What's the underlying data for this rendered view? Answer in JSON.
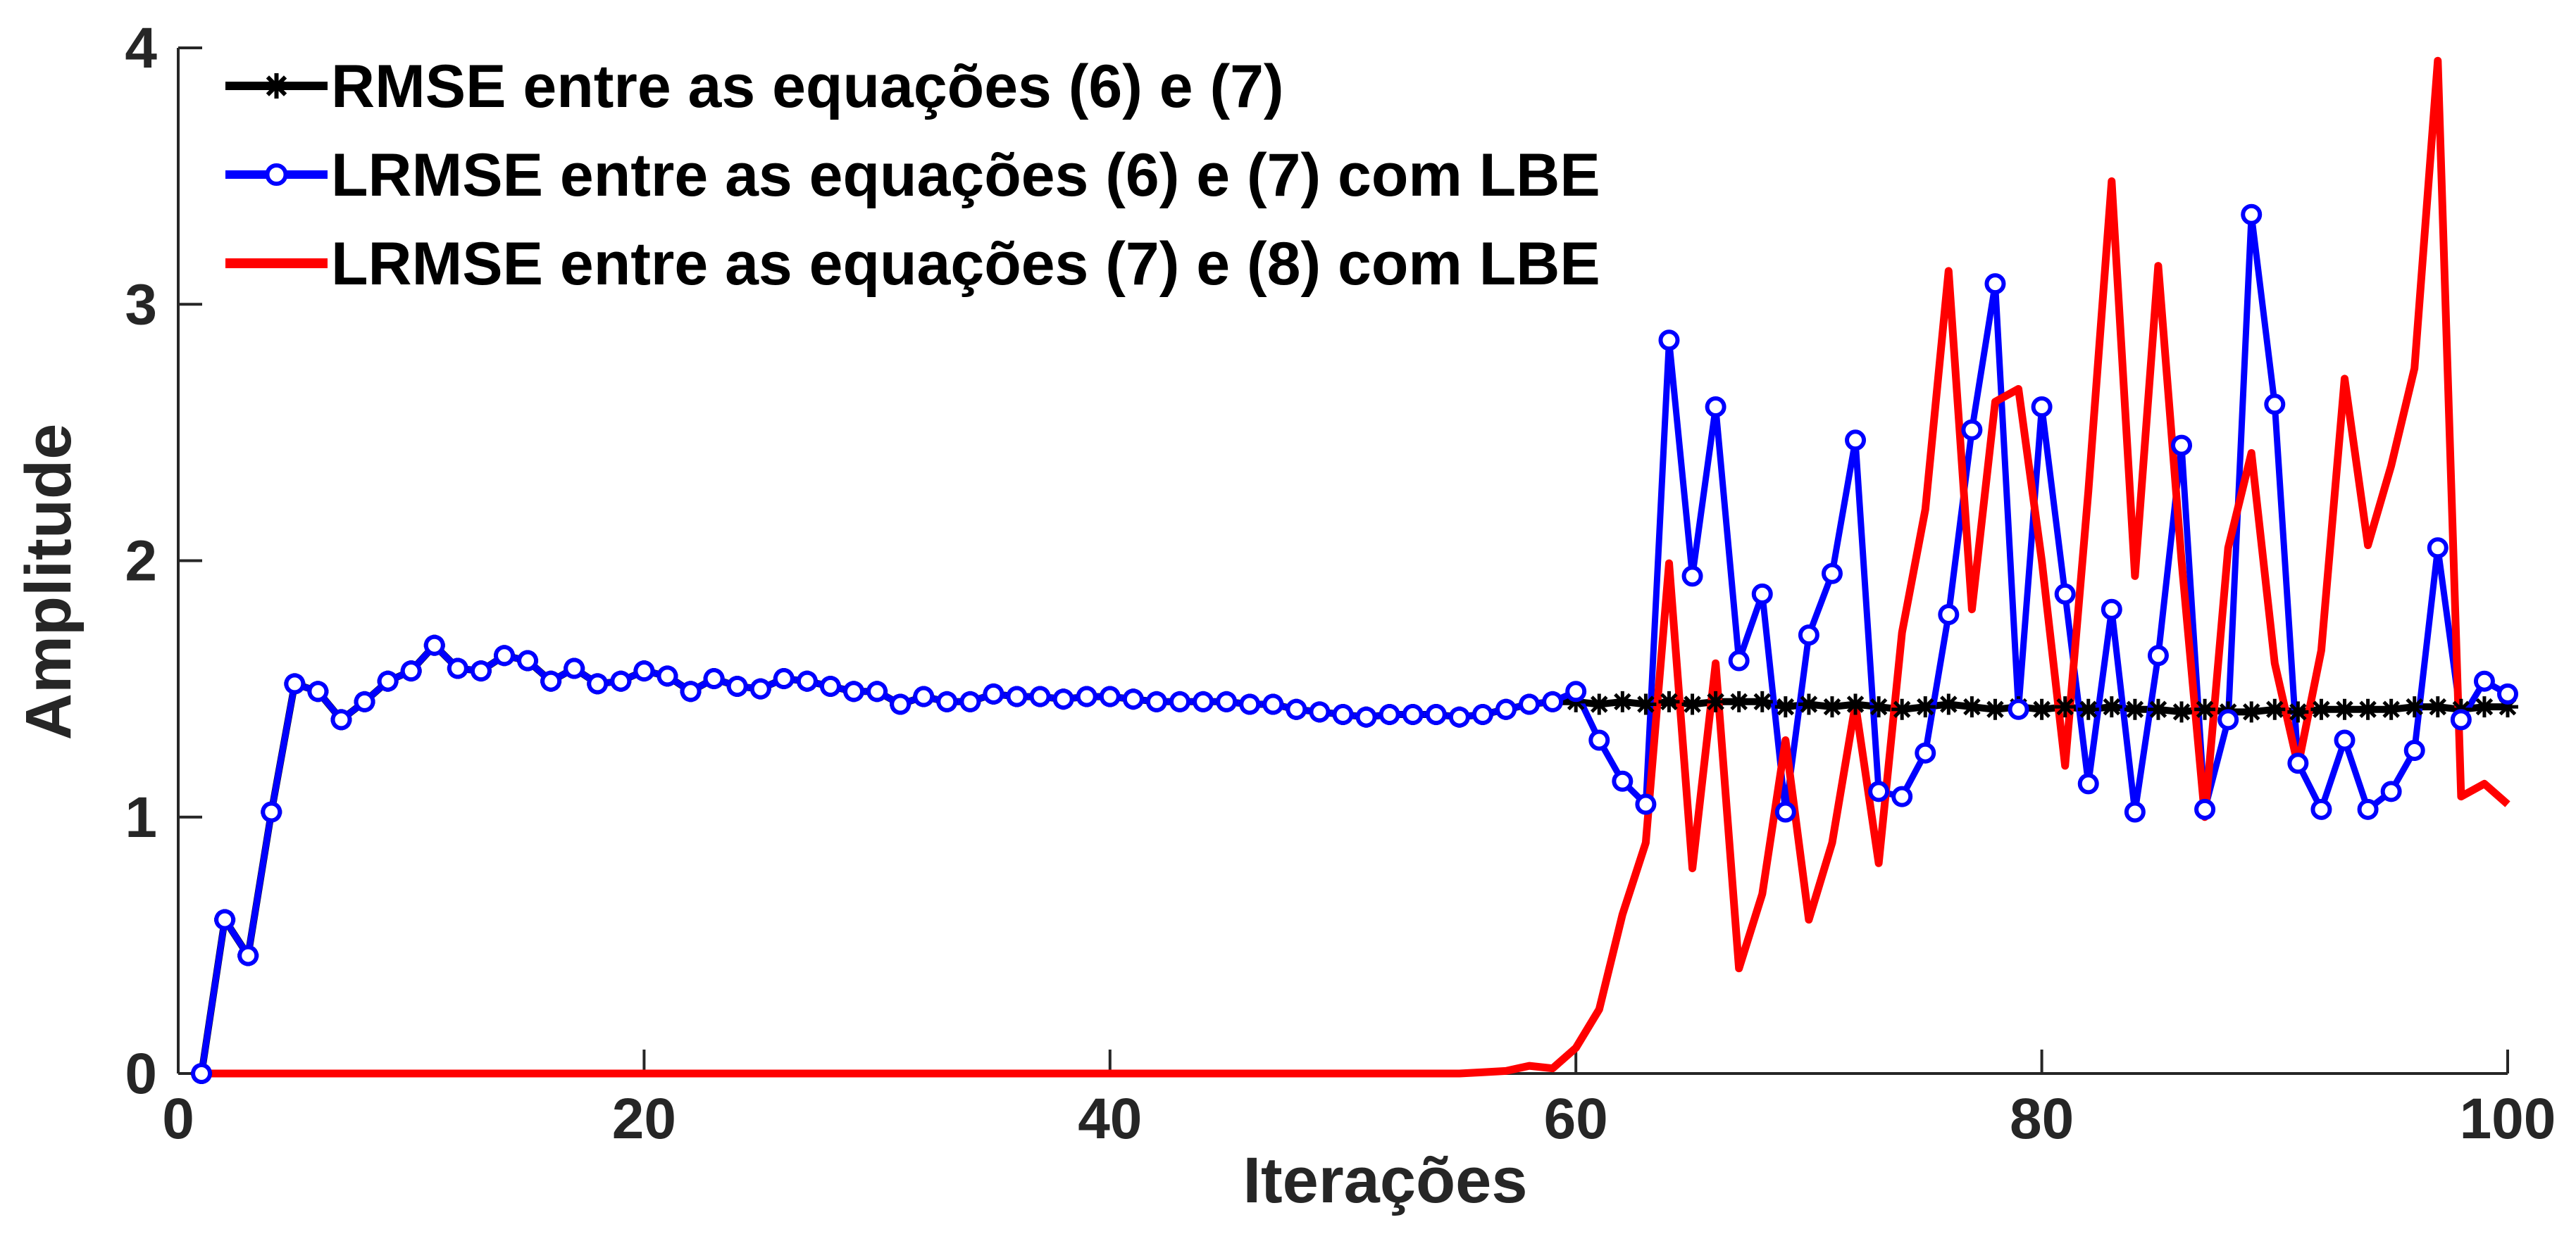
{
  "chart_data": {
    "type": "line",
    "title": "",
    "xlabel": "Iterações",
    "ylabel": "Amplitude",
    "xlim": [
      0,
      100
    ],
    "ylim": [
      0,
      4
    ],
    "x_ticks": [
      "0",
      "20",
      "40",
      "60",
      "80",
      "100"
    ],
    "y_ticks": [
      "0",
      "1",
      "2",
      "3",
      "4"
    ],
    "grid": false,
    "legend_position": "top-left",
    "x": [
      1,
      2,
      3,
      4,
      5,
      6,
      7,
      8,
      9,
      10,
      11,
      12,
      13,
      14,
      15,
      16,
      17,
      18,
      19,
      20,
      21,
      22,
      23,
      24,
      25,
      26,
      27,
      28,
      29,
      30,
      31,
      32,
      33,
      34,
      35,
      36,
      37,
      38,
      39,
      40,
      41,
      42,
      43,
      44,
      45,
      46,
      47,
      48,
      49,
      50,
      51,
      52,
      53,
      54,
      55,
      56,
      57,
      58,
      59,
      60,
      61,
      62,
      63,
      64,
      65,
      66,
      67,
      68,
      69,
      70,
      71,
      72,
      73,
      74,
      75,
      76,
      77,
      78,
      79,
      80,
      81,
      82,
      83,
      84,
      85,
      86,
      87,
      88,
      89,
      90,
      91,
      92,
      93,
      94,
      95,
      96,
      97,
      98,
      99,
      100
    ],
    "series": [
      {
        "name": "RMSE entre as equações (6) e (7)",
        "color": "#000000",
        "marker": "asterisk",
        "values": [
          0,
          0.6,
          0.46,
          1.02,
          1.52,
          1.49,
          1.38,
          1.45,
          1.53,
          1.57,
          1.67,
          1.58,
          1.57,
          1.63,
          1.61,
          1.53,
          1.58,
          1.52,
          1.53,
          1.57,
          1.55,
          1.49,
          1.54,
          1.51,
          1.5,
          1.54,
          1.53,
          1.51,
          1.49,
          1.49,
          1.44,
          1.47,
          1.45,
          1.45,
          1.48,
          1.47,
          1.47,
          1.46,
          1.47,
          1.47,
          1.46,
          1.45,
          1.45,
          1.45,
          1.45,
          1.44,
          1.44,
          1.42,
          1.41,
          1.4,
          1.39,
          1.4,
          1.4,
          1.4,
          1.39,
          1.4,
          1.42,
          1.44,
          1.45,
          1.45,
          1.44,
          1.45,
          1.44,
          1.45,
          1.44,
          1.45,
          1.45,
          1.45,
          1.43,
          1.44,
          1.43,
          1.44,
          1.43,
          1.42,
          1.43,
          1.44,
          1.43,
          1.42,
          1.43,
          1.42,
          1.43,
          1.42,
          1.43,
          1.42,
          1.42,
          1.41,
          1.42,
          1.41,
          1.41,
          1.42,
          1.41,
          1.42,
          1.42,
          1.42,
          1.42,
          1.43,
          1.43,
          1.42,
          1.43,
          1.43
        ]
      },
      {
        "name": "LRMSE entre as equações (6) e (7) com LBE",
        "color": "#0000ff",
        "marker": "circle",
        "values": [
          0,
          0.6,
          0.46,
          1.02,
          1.52,
          1.49,
          1.38,
          1.45,
          1.53,
          1.57,
          1.67,
          1.58,
          1.57,
          1.63,
          1.61,
          1.53,
          1.58,
          1.52,
          1.53,
          1.57,
          1.55,
          1.49,
          1.54,
          1.51,
          1.5,
          1.54,
          1.53,
          1.51,
          1.49,
          1.49,
          1.44,
          1.47,
          1.45,
          1.45,
          1.48,
          1.47,
          1.47,
          1.46,
          1.47,
          1.47,
          1.46,
          1.45,
          1.45,
          1.45,
          1.45,
          1.44,
          1.44,
          1.42,
          1.41,
          1.4,
          1.39,
          1.4,
          1.4,
          1.4,
          1.39,
          1.4,
          1.42,
          1.44,
          1.45,
          1.49,
          1.3,
          1.14,
          1.05,
          2.86,
          1.94,
          2.6,
          1.61,
          1.87,
          1.02,
          1.71,
          1.95,
          2.47,
          1.1,
          1.08,
          1.25,
          1.79,
          2.51,
          3.08,
          1.42,
          2.6,
          1.87,
          1.13,
          1.81,
          1.02,
          1.63,
          2.45,
          1.03,
          1.38,
          3.35,
          2.61,
          1.21,
          1.03,
          1.3,
          1.03,
          1.1,
          1.26,
          2.05,
          1.38,
          1.53,
          1.48
        ]
      },
      {
        "name": "LRMSE  entre as equações (7) e (8) com LBE",
        "color": "#ff0000",
        "marker": "none",
        "values": [
          0,
          0,
          0,
          0,
          0,
          0,
          0,
          0,
          0,
          0,
          0,
          0,
          0,
          0,
          0,
          0,
          0,
          0,
          0,
          0,
          0,
          0,
          0,
          0,
          0,
          0,
          0,
          0,
          0,
          0,
          0,
          0,
          0,
          0,
          0,
          0,
          0,
          0,
          0,
          0,
          0,
          0,
          0,
          0,
          0,
          0,
          0,
          0,
          0,
          0,
          0,
          0,
          0,
          0,
          0,
          0.005,
          0.01,
          0.03,
          0.02,
          0.1,
          0.25,
          0.62,
          0.9,
          1.99,
          0.8,
          1.6,
          0.41,
          0.7,
          1.3,
          0.6,
          0.9,
          1.44,
          0.82,
          1.72,
          2.2,
          3.13,
          1.81,
          2.62,
          2.67,
          2.0,
          1.2,
          2.27,
          3.48,
          1.94,
          3.15,
          2.0,
          1.0,
          2.05,
          2.42,
          1.6,
          1.2,
          1.65,
          2.71,
          2.06,
          2.37,
          2.75,
          3.95,
          1.08,
          1.13,
          1.05
        ]
      }
    ]
  }
}
